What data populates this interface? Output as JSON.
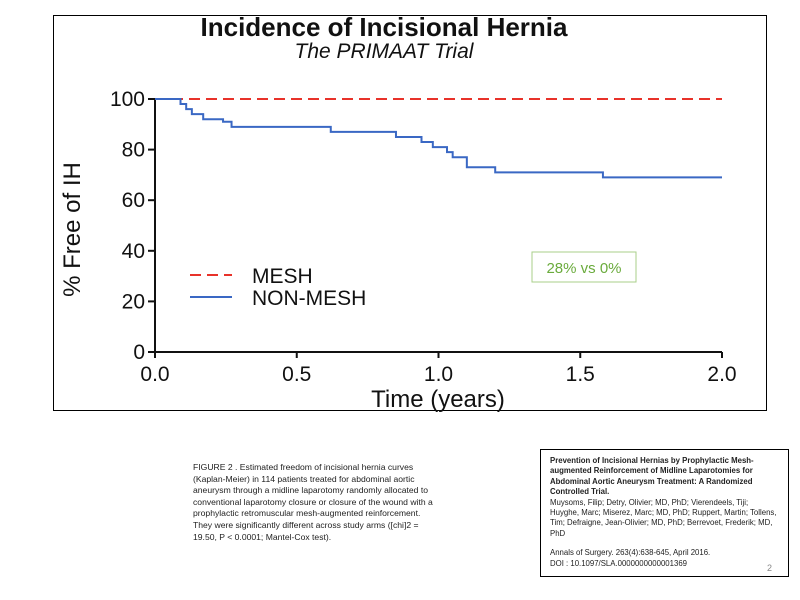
{
  "chart_data": {
    "type": "line",
    "title": "Incidence of Incisional Hernia",
    "subtitle": "The PRIMAAT Trial",
    "xlabel": "Time (years)",
    "ylabel": "% Free of IH",
    "xlim": [
      0,
      2.0
    ],
    "ylim": [
      0,
      100
    ],
    "x_ticks": [
      "0.0",
      "0.5",
      "1.0",
      "1.5",
      "2.0"
    ],
    "y_ticks": [
      "0",
      "20",
      "40",
      "60",
      "80",
      "100"
    ],
    "grid": false,
    "legend_placement": "lower-left",
    "series": [
      {
        "name": "MESH",
        "color": "#e8322a",
        "style": "dashed",
        "x": [
          0,
          2.0
        ],
        "y": [
          100,
          100
        ]
      },
      {
        "name": "NON-MESH",
        "color": "#3a68c4",
        "style": "step",
        "x": [
          0,
          0.09,
          0.11,
          0.13,
          0.17,
          0.24,
          0.27,
          0.62,
          0.85,
          0.94,
          0.98,
          1.03,
          1.05,
          1.1,
          1.2,
          1.58,
          2.0
        ],
        "y": [
          100,
          98,
          96,
          94,
          92,
          91,
          89,
          87,
          85,
          83,
          81,
          79,
          77,
          73,
          71,
          69,
          69
        ]
      }
    ],
    "annotation": "28% vs 0%",
    "annotation_color": "#6aab3c"
  },
  "caption": "FIGURE 2 . Estimated freedom of incisional hernia curves (Kaplan-Meier) in 114 patients treated for abdominal aortic aneurysm through a midline laparotomy randomly allocated to conventional laparotomy closure or closure of the wound with a prophylactic retromuscular mesh-augmented reinforcement. They were significantly different across study arms ([chi]2 = 19.50, P < 0.0001; Mantel-Cox test).",
  "reference": {
    "title": "Prevention of Incisional Hernias by Prophylactic Mesh-augmented Reinforcement of Midline Laparotomies for Abdominal Aortic Aneurysm Treatment: A Randomized Controlled Trial.",
    "authors": "Muysoms, Filip; Detry, Olivier; MD, PhD; Vierendeels, Tiji; Huyghe, Marc; Miserez, Marc; MD, PhD; Ruppert, Martin; Tollens, Tim; Defraigne, Jean-Olivier; MD, PhD; Berrevoet, Frederik; MD, PhD",
    "journal": "Annals of Surgery. 263(4):638-645, April 2016.",
    "doi": "DOI : 10.1097/SLA.0000000000001369"
  },
  "slide_number": "2"
}
